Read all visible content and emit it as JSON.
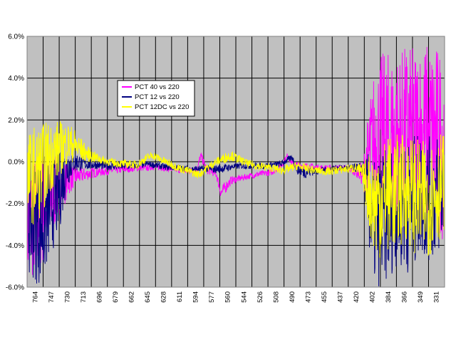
{
  "chart_data": {
    "type": "line",
    "title": "",
    "xlabel": "",
    "ylabel": "",
    "ylim": [
      -6.0,
      6.0
    ],
    "y_ticks": [
      "6.0%",
      "4.0%",
      "2.0%",
      "0.0%",
      "-2.0%",
      "-4.0%",
      "-6.0%"
    ],
    "y_tick_values": [
      6,
      4,
      2,
      0,
      -2,
      -4,
      -6
    ],
    "x_reversed": true,
    "x_range": [
      764,
      314
    ],
    "x_ticks": [
      "764",
      "747",
      "730",
      "713",
      "696",
      "679",
      "662",
      "645",
      "628",
      "611",
      "594",
      "577",
      "560",
      "544",
      "526",
      "508",
      "490",
      "473",
      "455",
      "437",
      "420",
      "402",
      "384",
      "366",
      "349",
      "331"
    ],
    "grid": true,
    "plot_background": "#C0C0C0",
    "legend": {
      "placement": "upper-left inside plot"
    },
    "series": [
      {
        "name": "PCT 40 vs 220",
        "color": "#FF00FF",
        "x": [
          764,
          755,
          747,
          740,
          730,
          720,
          713,
          700,
          690,
          680,
          670,
          660,
          645,
          635,
          628,
          615,
          600,
          590,
          585,
          580,
          577,
          570,
          565,
          560,
          555,
          550,
          544,
          535,
          526,
          515,
          508,
          500,
          490,
          483,
          478,
          473,
          465,
          455,
          445,
          437,
          430,
          420,
          410,
          402,
          395,
          390,
          384,
          375,
          366,
          355,
          349,
          340,
          331,
          320,
          314
        ],
        "y": [
          -3.0,
          -2.6,
          -2.2,
          -1.8,
          -1.2,
          -0.9,
          -0.7,
          -0.6,
          -0.5,
          -0.45,
          -0.4,
          -0.35,
          -0.3,
          -0.3,
          -0.25,
          -0.3,
          -0.4,
          -0.45,
          -0.4,
          -0.3,
          0.3,
          -0.4,
          -0.45,
          -0.6,
          -1.5,
          -1.2,
          -0.9,
          -0.8,
          -0.7,
          -0.6,
          -0.55,
          -0.5,
          -0.2,
          0.3,
          -0.1,
          -0.15,
          -0.2,
          -0.25,
          -0.3,
          -0.3,
          -0.3,
          -0.3,
          -0.4,
          -0.6,
          0.4,
          0.9,
          1.2,
          1.1,
          1.0,
          1.2,
          1.0,
          1.3,
          1.2,
          1.0,
          0.8
        ],
        "amplitude": [
          3.0,
          3.0,
          2.8,
          2.0,
          1.5,
          0.8,
          0.5,
          0.3,
          0.25,
          0.2,
          0.2,
          0.2,
          0.15,
          0.15,
          0.15,
          0.15,
          0.15,
          0.15,
          0.2,
          0.2,
          0.2,
          0.2,
          0.2,
          0.2,
          0.3,
          0.3,
          0.2,
          0.15,
          0.15,
          0.15,
          0.15,
          0.15,
          0.15,
          0.15,
          0.15,
          0.15,
          0.15,
          0.15,
          0.15,
          0.15,
          0.15,
          0.15,
          0.3,
          0.6,
          2.5,
          3.5,
          4.0,
          4.2,
          4.3,
          4.4,
          4.5,
          4.6,
          4.6,
          4.6,
          4.6
        ]
      },
      {
        "name": "PCT 12 vs 220",
        "color": "#000080",
        "x": [
          764,
          755,
          747,
          740,
          730,
          720,
          713,
          700,
          690,
          680,
          670,
          660,
          645,
          635,
          628,
          615,
          600,
          590,
          577,
          570,
          560,
          550,
          544,
          535,
          526,
          515,
          508,
          500,
          490,
          483,
          478,
          473,
          465,
          455,
          445,
          437,
          430,
          420,
          410,
          402,
          395,
          390,
          384,
          375,
          366,
          355,
          349,
          340,
          331,
          320,
          314
        ],
        "y": [
          -2.5,
          -2.8,
          -2.8,
          -2.2,
          -1.5,
          -0.2,
          0.0,
          -0.1,
          -0.15,
          -0.2,
          -0.2,
          -0.2,
          -0.2,
          -0.1,
          -0.15,
          -0.25,
          -0.3,
          -0.35,
          -0.35,
          -0.35,
          -0.35,
          -0.3,
          -0.25,
          -0.2,
          -0.2,
          -0.2,
          -0.2,
          -0.15,
          -0.1,
          0.1,
          0.2,
          -0.4,
          -0.5,
          -0.45,
          -0.4,
          -0.35,
          -0.3,
          -0.3,
          -0.3,
          -0.3,
          -2.0,
          -3.0,
          -2.8,
          -2.5,
          -2.0,
          -2.2,
          -2.0,
          -1.5,
          -1.8,
          -1.5,
          -1.2
        ],
        "amplitude": [
          3.0,
          3.0,
          3.2,
          2.5,
          2.0,
          1.0,
          0.5,
          0.3,
          0.2,
          0.2,
          0.2,
          0.2,
          0.15,
          0.15,
          0.15,
          0.15,
          0.15,
          0.15,
          0.15,
          0.15,
          0.2,
          0.2,
          0.15,
          0.15,
          0.15,
          0.15,
          0.15,
          0.15,
          0.15,
          0.15,
          0.15,
          0.2,
          0.3,
          0.2,
          0.15,
          0.15,
          0.15,
          0.15,
          0.2,
          0.3,
          2.5,
          3.0,
          3.2,
          3.2,
          3.0,
          3.2,
          3.2,
          3.0,
          3.0,
          3.0,
          2.8
        ]
      },
      {
        "name": "PCT 12DC vs 220",
        "color": "#FFFF00",
        "x": [
          764,
          755,
          747,
          740,
          730,
          720,
          713,
          700,
          690,
          680,
          670,
          660,
          645,
          635,
          628,
          615,
          600,
          590,
          580,
          577,
          570,
          560,
          550,
          544,
          535,
          526,
          515,
          508,
          500,
          490,
          483,
          473,
          465,
          455,
          445,
          437,
          430,
          420,
          410,
          402,
          395,
          390,
          384,
          375,
          366,
          355,
          349,
          340,
          331,
          320,
          314
        ],
        "y": [
          -0.8,
          -0.6,
          -0.3,
          0.2,
          0.6,
          0.9,
          0.8,
          0.4,
          0.2,
          0.05,
          -0.05,
          -0.1,
          -0.15,
          0.2,
          0.3,
          0.0,
          -0.3,
          -0.45,
          -0.6,
          -0.55,
          -0.3,
          0.0,
          0.2,
          0.3,
          0.1,
          -0.1,
          -0.2,
          -0.25,
          -0.3,
          -0.4,
          -0.35,
          -0.2,
          -0.3,
          -0.4,
          -0.45,
          -0.45,
          -0.4,
          -0.35,
          -0.3,
          -0.6,
          -1.5,
          -2.0,
          -1.8,
          -1.5,
          -1.5,
          -1.2,
          -1.5,
          -1.8,
          -1.8,
          -1.2,
          -0.8
        ],
        "amplitude": [
          2.2,
          2.4,
          2.2,
          1.8,
          1.4,
          1.0,
          0.8,
          0.4,
          0.25,
          0.2,
          0.2,
          0.2,
          0.2,
          0.2,
          0.2,
          0.2,
          0.2,
          0.2,
          0.2,
          0.2,
          0.2,
          0.2,
          0.25,
          0.25,
          0.2,
          0.2,
          0.2,
          0.2,
          0.2,
          0.2,
          0.2,
          0.2,
          0.2,
          0.2,
          0.2,
          0.2,
          0.2,
          0.2,
          0.25,
          0.5,
          2.0,
          2.6,
          2.8,
          2.8,
          2.8,
          2.6,
          2.8,
          2.8,
          2.8,
          2.6,
          2.4
        ]
      }
    ]
  }
}
